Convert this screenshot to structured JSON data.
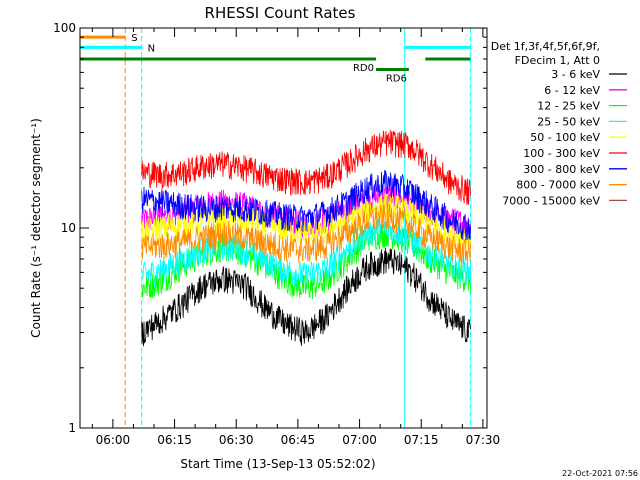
{
  "chart_data": {
    "type": "line",
    "title": "RHESSI Count Rates",
    "xlabel": "Start Time (13-Sep-13 05:52:02)",
    "ylabel": "Count Rate (s⁻¹ detector segment⁻¹)",
    "y_scale": "log",
    "ylim": [
      1,
      100
    ],
    "xlim": [
      "05:52",
      "07:31"
    ],
    "y_tick_labels": [
      "1",
      "10",
      "100"
    ],
    "x_tick_labels": [
      "06:00",
      "06:15",
      "06:30",
      "06:45",
      "07:00",
      "07:15",
      "07:30"
    ],
    "legend_placement": "right",
    "legend_header": [
      "Det 1f,3f,4f,5f,6f,9f,",
      "FDecim 1, Att 0"
    ],
    "timestamp": "22-Oct-2021 07:56",
    "data_start": "06:07",
    "data_end": "07:27",
    "series": [
      {
        "name": "3 - 6 keV",
        "color": "#000000",
        "values": [
          3.0,
          3.5,
          4.2,
          5.2,
          5.6,
          5.2,
          4.0,
          3.3,
          3.0,
          3.6,
          5.0,
          6.5,
          7.0,
          6.2,
          4.5,
          3.5,
          3.0
        ]
      },
      {
        "name": "6 - 12 keV",
        "color": "#ff00ff",
        "values": [
          11.0,
          11.5,
          12.0,
          13.0,
          13.5,
          13.0,
          12.0,
          11.0,
          10.5,
          11.0,
          12.5,
          14.0,
          14.5,
          13.5,
          12.0,
          11.0,
          10.5
        ]
      },
      {
        "name": "12 - 25 keV",
        "color": "#00ff00",
        "values": [
          5.0,
          5.5,
          6.5,
          7.5,
          8.0,
          7.5,
          6.5,
          5.5,
          5.0,
          5.5,
          7.0,
          9.0,
          9.5,
          8.5,
          7.0,
          6.0,
          5.5
        ]
      },
      {
        "name": "25 - 50 keV",
        "color": "#00ffff",
        "values": [
          5.8,
          6.2,
          7.0,
          7.8,
          8.2,
          7.8,
          7.0,
          6.2,
          5.8,
          6.3,
          7.8,
          9.5,
          10.0,
          9.0,
          7.5,
          6.5,
          6.0
        ]
      },
      {
        "name": "50 - 100 keV",
        "color": "#ffff00",
        "values": [
          9.5,
          10.0,
          10.5,
          11.0,
          11.5,
          11.0,
          10.5,
          10.0,
          9.5,
          10.0,
          11.0,
          12.5,
          13.0,
          12.0,
          10.5,
          9.5,
          9.0
        ]
      },
      {
        "name": "100 - 300 keV",
        "color": "#ff0000",
        "values": [
          19.0,
          18.5,
          19.0,
          20.5,
          21.0,
          20.0,
          18.5,
          17.5,
          17.0,
          18.0,
          21.0,
          25.0,
          27.0,
          26.0,
          21.0,
          17.0,
          15.0
        ]
      },
      {
        "name": "300 - 800 keV",
        "color": "#0000ff",
        "values": [
          14.0,
          13.5,
          13.0,
          12.5,
          12.8,
          12.5,
          12.0,
          11.5,
          11.2,
          12.0,
          13.5,
          16.0,
          17.0,
          15.5,
          13.0,
          11.0,
          10.0
        ]
      },
      {
        "name": "800 - 7000 keV",
        "color": "#ff8c00",
        "values": [
          8.0,
          8.2,
          8.5,
          9.0,
          9.5,
          9.0,
          8.5,
          8.0,
          7.8,
          8.2,
          9.5,
          11.0,
          11.5,
          10.5,
          9.0,
          8.0,
          7.5
        ]
      },
      {
        "name": "7000 - 15000 keV",
        "color": "#a0522d",
        "values": [
          null
        ]
      }
    ],
    "attenuator_bars": [
      {
        "label": "S",
        "color": "#ff8c00",
        "start": "05:52",
        "end": "06:03",
        "level": 90
      },
      {
        "label": "N",
        "color": "#00ffff",
        "start": "05:52",
        "end": "06:07",
        "level": 80
      },
      {
        "label": "",
        "color": "#00ffff",
        "start": "07:11",
        "end": "07:27",
        "level": 80
      },
      {
        "label": "RD0",
        "color": "#008000",
        "start": "05:52",
        "end": "07:04",
        "level": 70
      },
      {
        "label": "",
        "color": "#008000",
        "start": "07:16",
        "end": "07:27",
        "level": 70
      },
      {
        "label": "RD6",
        "color": "#008000",
        "start": "07:04",
        "end": "07:12",
        "level": 62
      }
    ],
    "vertical_markers": [
      {
        "time": "05:52",
        "color": "#00ffff",
        "style": "solid"
      },
      {
        "time": "06:03",
        "color": "#ff8c00",
        "style": "dashed"
      },
      {
        "time": "06:07",
        "color": "#00ffff",
        "style": "dashed"
      },
      {
        "time": "07:11",
        "color": "#00ffff",
        "style": "solid"
      },
      {
        "time": "07:27",
        "color": "#00ffff",
        "style": "dashed"
      }
    ]
  }
}
